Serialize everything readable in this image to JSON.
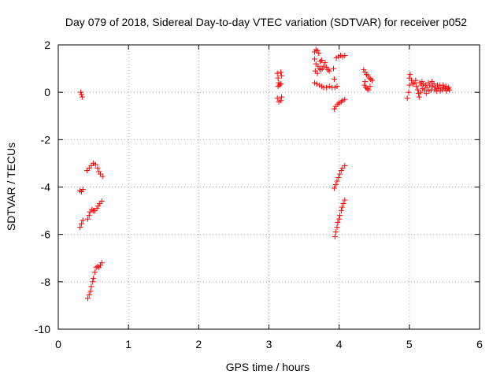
{
  "chart_data": {
    "type": "scatter",
    "title": "Day 079 of 2018, Sidereal Day-to-day VTEC variation (SDTVAR) for receiver p052",
    "xlabel": "GPS time / hours",
    "ylabel": "SDTVAR / TECUs",
    "xlim": [
      0,
      6
    ],
    "ylim": [
      -10,
      2
    ],
    "xticks": [
      "0",
      "1",
      "2",
      "3",
      "4",
      "5",
      "6"
    ],
    "yticks": [
      "2",
      "0",
      "-2",
      "-4",
      "-6",
      "-8",
      "-10"
    ],
    "grid": true,
    "marker": "plus",
    "series_color": "#ff0000",
    "points": [
      [
        0.32,
        0.0
      ],
      [
        0.33,
        -0.1
      ],
      [
        0.34,
        -0.2
      ],
      [
        0.31,
        -4.15
      ],
      [
        0.33,
        -4.2
      ],
      [
        0.35,
        -4.1
      ],
      [
        0.41,
        -3.3
      ],
      [
        0.44,
        -3.2
      ],
      [
        0.47,
        -3.1
      ],
      [
        0.5,
        -3.0
      ],
      [
        0.53,
        -3.05
      ],
      [
        0.56,
        -3.2
      ],
      [
        0.58,
        -3.35
      ],
      [
        0.6,
        -3.45
      ],
      [
        0.63,
        -3.55
      ],
      [
        0.31,
        -5.7
      ],
      [
        0.33,
        -5.55
      ],
      [
        0.35,
        -5.4
      ],
      [
        0.42,
        -5.35
      ],
      [
        0.44,
        -5.2
      ],
      [
        0.45,
        -5.05
      ],
      [
        0.48,
        -4.95
      ],
      [
        0.5,
        -5.0
      ],
      [
        0.52,
        -5.0
      ],
      [
        0.55,
        -4.9
      ],
      [
        0.57,
        -4.8
      ],
      [
        0.59,
        -4.7
      ],
      [
        0.62,
        -4.6
      ],
      [
        0.42,
        -8.7
      ],
      [
        0.44,
        -8.55
      ],
      [
        0.46,
        -8.4
      ],
      [
        0.47,
        -8.2
      ],
      [
        0.49,
        -8.0
      ],
      [
        0.5,
        -7.85
      ],
      [
        0.52,
        -7.6
      ],
      [
        0.54,
        -7.4
      ],
      [
        0.56,
        -7.35
      ],
      [
        0.58,
        -7.4
      ],
      [
        0.6,
        -7.3
      ],
      [
        0.62,
        -7.2
      ],
      [
        3.12,
        0.8
      ],
      [
        3.13,
        0.6
      ],
      [
        3.14,
        0.4
      ],
      [
        3.13,
        0.25
      ],
      [
        3.15,
        0.3
      ],
      [
        3.17,
        0.35
      ],
      [
        3.18,
        0.7
      ],
      [
        3.17,
        0.85
      ],
      [
        3.12,
        -0.25
      ],
      [
        3.14,
        -0.4
      ],
      [
        3.17,
        -0.35
      ],
      [
        3.18,
        -0.2
      ],
      [
        3.65,
        1.7
      ],
      [
        3.67,
        1.8
      ],
      [
        3.69,
        1.75
      ],
      [
        3.71,
        1.65
      ],
      [
        3.65,
        1.4
      ],
      [
        3.67,
        1.2
      ],
      [
        3.7,
        1.1
      ],
      [
        3.72,
        1.0
      ],
      [
        3.74,
        0.95
      ],
      [
        3.76,
        1.0
      ],
      [
        3.78,
        1.1
      ],
      [
        3.66,
        0.9
      ],
      [
        3.69,
        0.8
      ],
      [
        3.73,
        1.3
      ],
      [
        3.75,
        1.35
      ],
      [
        3.8,
        1.25
      ],
      [
        3.82,
        1.05
      ],
      [
        3.84,
        0.95
      ],
      [
        3.86,
        0.9
      ],
      [
        3.65,
        0.4
      ],
      [
        3.68,
        0.35
      ],
      [
        3.72,
        0.3
      ],
      [
        3.75,
        0.25
      ],
      [
        3.78,
        0.2
      ],
      [
        3.82,
        0.2
      ],
      [
        3.86,
        0.25
      ],
      [
        3.9,
        0.2
      ],
      [
        3.94,
        0.2
      ],
      [
        3.97,
        0.25
      ],
      [
        3.93,
        0.55
      ],
      [
        3.92,
        1.0
      ],
      [
        3.96,
        1.45
      ],
      [
        3.99,
        1.5
      ],
      [
        4.02,
        1.55
      ],
      [
        4.05,
        1.5
      ],
      [
        4.08,
        1.55
      ],
      [
        3.93,
        -0.7
      ],
      [
        3.95,
        -0.6
      ],
      [
        3.98,
        -0.5
      ],
      [
        4.0,
        -0.45
      ],
      [
        4.03,
        -0.4
      ],
      [
        4.05,
        -0.35
      ],
      [
        4.08,
        -0.3
      ],
      [
        3.93,
        -4.05
      ],
      [
        3.95,
        -3.9
      ],
      [
        3.97,
        -3.75
      ],
      [
        3.99,
        -3.6
      ],
      [
        4.01,
        -3.45
      ],
      [
        4.03,
        -3.3
      ],
      [
        4.05,
        -3.2
      ],
      [
        4.08,
        -3.1
      ],
      [
        3.94,
        -6.1
      ],
      [
        3.95,
        -5.9
      ],
      [
        3.97,
        -5.7
      ],
      [
        3.98,
        -5.5
      ],
      [
        4.0,
        -5.35
      ],
      [
        4.01,
        -5.2
      ],
      [
        4.03,
        -5.0
      ],
      [
        4.04,
        -4.85
      ],
      [
        4.06,
        -4.7
      ],
      [
        4.08,
        -4.55
      ],
      [
        4.35,
        0.95
      ],
      [
        4.37,
        0.85
      ],
      [
        4.39,
        0.75
      ],
      [
        4.41,
        0.7
      ],
      [
        4.43,
        0.6
      ],
      [
        4.45,
        0.55
      ],
      [
        4.47,
        0.5
      ],
      [
        4.36,
        0.3
      ],
      [
        4.38,
        0.2
      ],
      [
        4.4,
        0.15
      ],
      [
        4.42,
        0.1
      ],
      [
        4.37,
        0.45
      ],
      [
        4.44,
        0.25
      ],
      [
        4.97,
        -0.25
      ],
      [
        4.99,
        0.0
      ],
      [
        5.0,
        0.3
      ],
      [
        5.0,
        0.6
      ],
      [
        5.01,
        0.75
      ],
      [
        5.03,
        0.5
      ],
      [
        5.05,
        0.35
      ],
      [
        5.07,
        0.4
      ],
      [
        5.09,
        0.5
      ],
      [
        5.1,
        0.25
      ],
      [
        5.12,
        0.1
      ],
      [
        5.13,
        -0.05
      ],
      [
        5.14,
        -0.2
      ],
      [
        5.16,
        0.0
      ],
      [
        5.17,
        0.3
      ],
      [
        5.18,
        0.45
      ],
      [
        5.2,
        0.35
      ],
      [
        5.22,
        0.1
      ],
      [
        5.24,
        -0.05
      ],
      [
        5.25,
        0.2
      ],
      [
        5.27,
        0.4
      ],
      [
        5.29,
        0.3
      ],
      [
        5.31,
        0.1
      ],
      [
        5.33,
        0.25
      ],
      [
        5.35,
        0.35
      ],
      [
        5.37,
        0.2
      ],
      [
        5.39,
        0.05
      ],
      [
        5.41,
        0.15
      ],
      [
        5.43,
        0.3
      ],
      [
        5.45,
        0.2
      ],
      [
        5.47,
        0.1
      ],
      [
        5.49,
        0.2
      ],
      [
        5.51,
        0.15
      ],
      [
        5.53,
        0.05
      ],
      [
        5.55,
        0.15
      ],
      [
        5.57,
        0.1
      ],
      [
        5.15,
        0.4
      ],
      [
        5.19,
        0.15
      ],
      [
        5.23,
        0.3
      ],
      [
        5.28,
        0.05
      ],
      [
        5.32,
        0.45
      ],
      [
        5.36,
        0.1
      ],
      [
        5.4,
        0.3
      ],
      [
        5.44,
        0.05
      ],
      [
        5.48,
        0.3
      ],
      [
        5.52,
        0.25
      ],
      [
        5.56,
        0.2
      ]
    ]
  }
}
